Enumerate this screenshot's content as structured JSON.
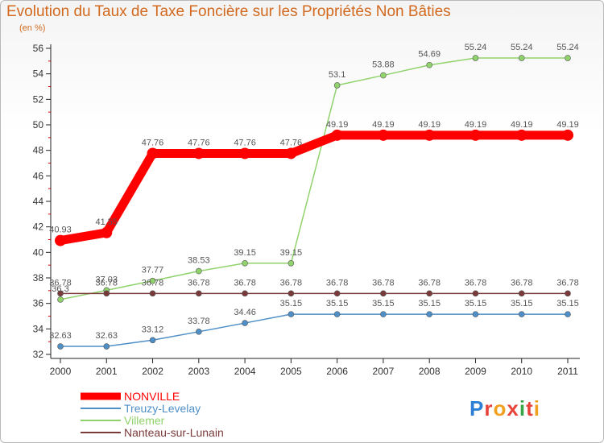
{
  "chart_data": {
    "type": "line",
    "title": "Evolution du Taux de Taxe Foncière sur les Propriétés Non Bâties",
    "unit_label": "(en %)",
    "x": [
      "2000",
      "2001",
      "2002",
      "2003",
      "2004",
      "2005",
      "2006",
      "2007",
      "2008",
      "2009",
      "2010",
      "2011"
    ],
    "ylim": [
      32,
      56
    ],
    "yticks": [
      32,
      34,
      36,
      38,
      40,
      42,
      44,
      46,
      48,
      50,
      52,
      54,
      56
    ],
    "grid": false,
    "legend_position": "bottom-left",
    "series": [
      {
        "name": "NONVILLE",
        "color": "#ff0000",
        "values": [
          40.93,
          41.55,
          47.76,
          47.76,
          47.76,
          47.76,
          49.19,
          49.19,
          49.19,
          49.19,
          49.19,
          49.19
        ],
        "labels": [
          "40.93",
          "41.55",
          "47.76",
          "47.76",
          "47.76",
          "47.76",
          "49.19",
          "49.19",
          "49.19",
          "49.19",
          "49.19",
          "49.19"
        ]
      },
      {
        "name": "Treuzy-Levelay",
        "color": "#4f8fc8",
        "values": [
          32.63,
          32.63,
          33.12,
          33.78,
          34.46,
          35.15,
          35.15,
          35.15,
          35.15,
          35.15,
          35.15,
          35.15
        ],
        "labels": [
          "32.63",
          "32.63",
          "33.12",
          "33.78",
          "34.46",
          "35.15",
          "35.15",
          "35.15",
          "35.15",
          "35.15",
          "35.15",
          "35.15"
        ]
      },
      {
        "name": "Villemer",
        "color": "#90d26c",
        "values": [
          36.3,
          37.03,
          37.77,
          38.53,
          39.15,
          39.15,
          53.1,
          53.88,
          54.69,
          55.24,
          55.24,
          55.24
        ],
        "labels": [
          "36.3",
          "37.03",
          "37.77",
          "38.53",
          "39.15",
          "39.15",
          "53.1",
          "53.88",
          "54.69",
          "55.24",
          "55.24",
          "55.24"
        ]
      },
      {
        "name": "Nanteau-sur-Lunain",
        "color": "#7a3a3a",
        "values": [
          36.78,
          36.78,
          36.78,
          36.78,
          36.78,
          36.78,
          36.78,
          36.78,
          36.78,
          36.78,
          36.78,
          36.78
        ],
        "labels": [
          "36.78",
          "36.78",
          "36.78",
          "36.78",
          "36.78",
          "36.78",
          "36.78",
          "36.78",
          "36.78",
          "36.78",
          "36.78",
          "36.78"
        ]
      }
    ]
  },
  "logo": {
    "letters": [
      "P",
      "r",
      "o",
      "x",
      "i",
      "t",
      "i"
    ],
    "colors": [
      "#2b7fd4",
      "#e8433a",
      "#f2a01f",
      "#e8433a",
      "#3aa548",
      "#e8433a",
      "#f2a01f"
    ]
  }
}
